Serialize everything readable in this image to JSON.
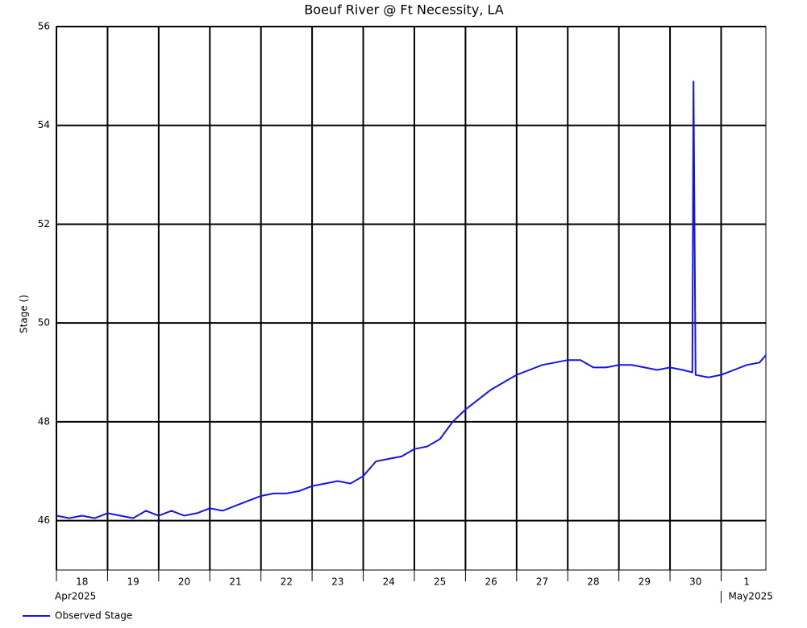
{
  "chart_data": {
    "type": "line",
    "title": "Boeuf River @ Ft Necessity, LA",
    "y_label": "Stage ()",
    "xlim": [
      "2025-04-18T00:00",
      "2025-05-01T21:00"
    ],
    "xticks": [
      {
        "value": "2025-04-18",
        "label": "18"
      },
      {
        "value": "2025-04-19",
        "label": "19"
      },
      {
        "value": "2025-04-20",
        "label": "20"
      },
      {
        "value": "2025-04-21",
        "label": "21"
      },
      {
        "value": "2025-04-22",
        "label": "22"
      },
      {
        "value": "2025-04-23",
        "label": "23"
      },
      {
        "value": "2025-04-24",
        "label": "24"
      },
      {
        "value": "2025-04-25",
        "label": "25"
      },
      {
        "value": "2025-04-26",
        "label": "26"
      },
      {
        "value": "2025-04-27",
        "label": "27"
      },
      {
        "value": "2025-04-28",
        "label": "28"
      },
      {
        "value": "2025-04-29",
        "label": "29"
      },
      {
        "value": "2025-04-30",
        "label": "30"
      },
      {
        "value": "2025-05-01",
        "label": "1"
      }
    ],
    "x_period_labels": [
      {
        "value": "2025-04-18",
        "label": "Apr2025"
      },
      {
        "value": "2025-05-01",
        "label": "May2025"
      }
    ],
    "ylim": [
      45,
      56
    ],
    "yticks": [
      46,
      48,
      50,
      52,
      54,
      56
    ],
    "grid": true,
    "x": [
      "2025-04-18T00:00",
      "2025-04-18T06:00",
      "2025-04-18T12:00",
      "2025-04-18T18:00",
      "2025-04-19T00:00",
      "2025-04-19T06:00",
      "2025-04-19T12:00",
      "2025-04-19T18:00",
      "2025-04-20T00:00",
      "2025-04-20T06:00",
      "2025-04-20T12:00",
      "2025-04-20T18:00",
      "2025-04-21T00:00",
      "2025-04-21T06:00",
      "2025-04-21T12:00",
      "2025-04-21T18:00",
      "2025-04-22T00:00",
      "2025-04-22T06:00",
      "2025-04-22T12:00",
      "2025-04-22T18:00",
      "2025-04-23T00:00",
      "2025-04-23T06:00",
      "2025-04-23T12:00",
      "2025-04-23T18:00",
      "2025-04-24T00:00",
      "2025-04-24T06:00",
      "2025-04-24T12:00",
      "2025-04-24T18:00",
      "2025-04-25T00:00",
      "2025-04-25T06:00",
      "2025-04-25T12:00",
      "2025-04-25T18:00",
      "2025-04-26T00:00",
      "2025-04-26T06:00",
      "2025-04-26T12:00",
      "2025-04-26T18:00",
      "2025-04-27T00:00",
      "2025-04-27T06:00",
      "2025-04-27T12:00",
      "2025-04-27T18:00",
      "2025-04-28T00:00",
      "2025-04-28T06:00",
      "2025-04-28T12:00",
      "2025-04-28T18:00",
      "2025-04-29T00:00",
      "2025-04-29T06:00",
      "2025-04-29T12:00",
      "2025-04-29T18:00",
      "2025-04-30T00:00",
      "2025-04-30T06:00",
      "2025-04-30T10:30",
      "2025-04-30T11:00",
      "2025-04-30T12:00",
      "2025-04-30T18:00",
      "2025-05-01T00:00",
      "2025-05-01T06:00",
      "2025-05-01T12:00",
      "2025-05-01T18:00",
      "2025-05-01T21:00"
    ],
    "series": [
      {
        "name": "Observed Stage",
        "color": "#1414e6",
        "values": [
          46.1,
          46.05,
          46.1,
          46.05,
          46.15,
          46.1,
          46.05,
          46.2,
          46.1,
          46.2,
          46.1,
          46.15,
          46.25,
          46.2,
          46.3,
          46.4,
          46.5,
          46.55,
          46.55,
          46.6,
          46.7,
          46.75,
          46.8,
          46.75,
          46.9,
          47.2,
          47.25,
          47.3,
          47.45,
          47.5,
          47.65,
          48.0,
          48.25,
          48.45,
          48.65,
          48.8,
          48.95,
          49.05,
          49.15,
          49.2,
          49.25,
          49.25,
          49.1,
          49.1,
          49.15,
          49.15,
          49.1,
          49.05,
          49.1,
          49.05,
          49.0,
          54.9,
          48.95,
          48.9,
          48.95,
          49.05,
          49.15,
          49.2,
          49.35
        ]
      }
    ],
    "legend": "bottom-left"
  }
}
